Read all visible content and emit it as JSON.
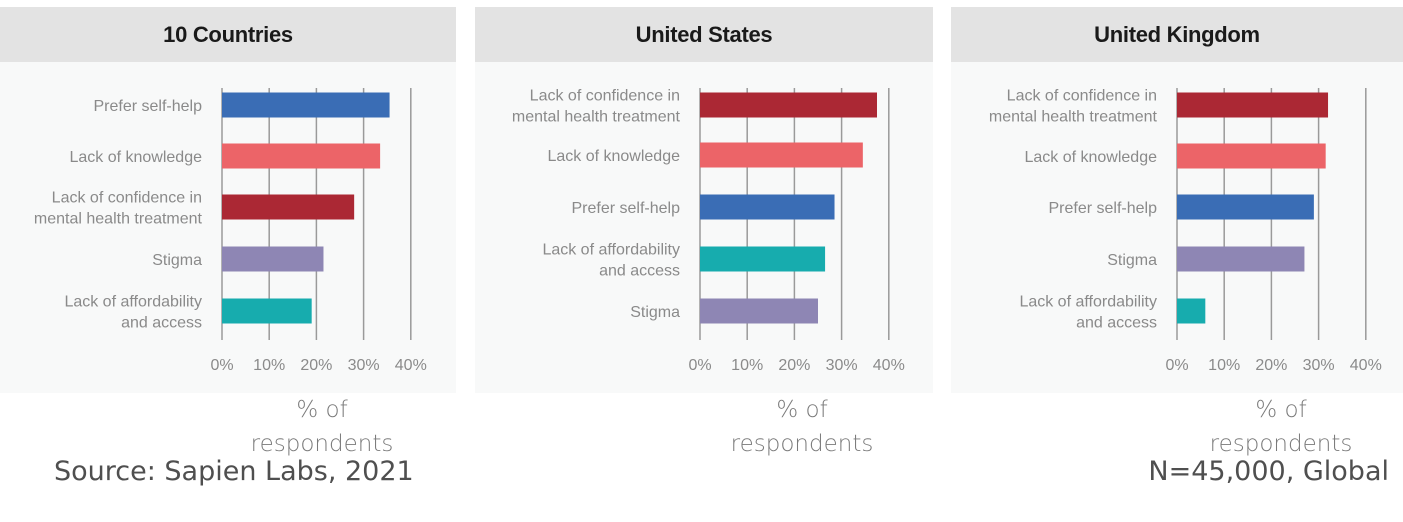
{
  "chart_data": [
    {
      "type": "bar",
      "orientation": "horizontal",
      "title": "10 Countries",
      "categories": [
        [
          "Prefer self-help"
        ],
        [
          "Lack of knowledge"
        ],
        [
          "Lack of confidence in",
          "mental health treatment"
        ],
        [
          "Stigma"
        ],
        [
          "Lack of affordability",
          "and access"
        ]
      ],
      "values": [
        35.5,
        33.5,
        28,
        21.5,
        19
      ],
      "colors": [
        "#3a6db5",
        "#ec6468",
        "#ab2834",
        "#8e86b4",
        "#17acae"
      ],
      "xlabel": "% of respondents",
      "xlim": [
        0,
        40
      ],
      "xticks": [
        "0%",
        "10%",
        "20%",
        "30%",
        "40%"
      ],
      "grid": true
    },
    {
      "type": "bar",
      "orientation": "horizontal",
      "title": "United States",
      "categories": [
        [
          "Lack of confidence in",
          "mental health treatment"
        ],
        [
          "Lack of knowledge"
        ],
        [
          "Prefer self-help"
        ],
        [
          "Lack of affordability",
          "and access"
        ],
        [
          "Stigma"
        ]
      ],
      "values": [
        37.5,
        34.5,
        28.5,
        26.5,
        25
      ],
      "colors": [
        "#ab2834",
        "#ec6468",
        "#3a6db5",
        "#17acae",
        "#8e86b4"
      ],
      "xlabel": "% of respondents",
      "xlim": [
        0,
        40
      ],
      "xticks": [
        "0%",
        "10%",
        "20%",
        "30%",
        "40%"
      ],
      "grid": true
    },
    {
      "type": "bar",
      "orientation": "horizontal",
      "title": "United Kingdom",
      "categories": [
        [
          "Lack of confidence in",
          "mental health treatment"
        ],
        [
          "Lack of knowledge"
        ],
        [
          "Prefer self-help"
        ],
        [
          "Stigma"
        ],
        [
          "Lack of affordability",
          "and access"
        ]
      ],
      "values": [
        32,
        31.5,
        29,
        27,
        6
      ],
      "colors": [
        "#ab2834",
        "#ec6468",
        "#3a6db5",
        "#8e86b4",
        "#17acae"
      ],
      "xlabel": "% of respondents",
      "xlim": [
        0,
        40
      ],
      "xticks": [
        "0%",
        "10%",
        "20%",
        "30%",
        "40%"
      ],
      "grid": true
    }
  ],
  "footer": {
    "source": "Source: Sapien Labs, 2021",
    "sample": "N=45,000, Global"
  }
}
